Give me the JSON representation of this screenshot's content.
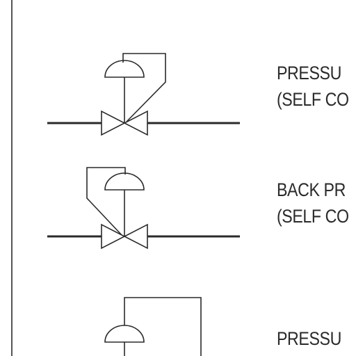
{
  "symbols": [
    {
      "id": "pressure-reducing-regulator",
      "line1": "PRESSU",
      "line2": "(SELF CO"
    },
    {
      "id": "back-pressure-regulator",
      "line1": "BACK PR",
      "line2": "(SELF CO"
    },
    {
      "id": "pressure-regulator-external",
      "line1": "PRESSU",
      "line2": ""
    }
  ],
  "colors": {
    "stroke": "#2a2a2a",
    "background": "#ffffff"
  }
}
